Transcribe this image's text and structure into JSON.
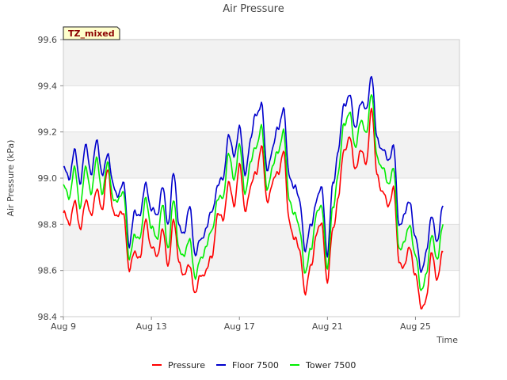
{
  "chart_data": {
    "type": "line",
    "title": "Air Pressure",
    "xlabel": "Time",
    "ylabel": "Air Pressure (kPa)",
    "tag": "TZ_mixed",
    "x_range_days": [
      9,
      27
    ],
    "x_ticks": [
      {
        "day": 9,
        "label": "Aug 9"
      },
      {
        "day": 13,
        "label": "Aug 13"
      },
      {
        "day": 17,
        "label": "Aug 17"
      },
      {
        "day": 21,
        "label": "Aug 21"
      },
      {
        "day": 25,
        "label": "Aug 25"
      }
    ],
    "ylim": [
      98.4,
      99.6
    ],
    "y_ticks": [
      98.4,
      98.6,
      98.8,
      99.0,
      99.2,
      99.4,
      99.6
    ],
    "grid": true,
    "alternating_bands": true,
    "legend_position": "bottom",
    "colors": {
      "pressure": "#ff0000",
      "floor": "#0000cc",
      "tower": "#00ee00",
      "band": "#f2f2f2",
      "tag_bg": "#ffffcc"
    },
    "series": [
      {
        "name": "Pressure",
        "color": "#ff0000",
        "x": [
          9.0,
          9.25,
          9.5,
          9.75,
          10.0,
          10.25,
          10.5,
          10.75,
          11.0,
          11.25,
          11.5,
          11.75,
          12.0,
          12.25,
          12.5,
          12.75,
          13.0,
          13.25,
          13.5,
          13.75,
          14.0,
          14.25,
          14.5,
          14.75,
          15.0,
          15.25,
          15.5,
          15.75,
          16.0,
          16.25,
          16.5,
          16.75,
          17.0,
          17.25,
          17.5,
          17.75,
          18.0,
          18.25,
          18.5,
          18.75,
          19.0,
          19.25,
          19.5,
          19.75,
          20.0,
          20.25,
          20.5,
          20.75,
          21.0,
          21.25,
          21.5,
          21.75,
          22.0,
          22.25,
          22.5,
          22.75,
          23.0,
          23.25,
          23.5,
          23.75,
          24.0,
          24.25,
          24.5,
          24.75,
          25.0,
          25.25,
          25.5,
          25.75,
          26.0,
          26.25
        ],
        "values": [
          98.85,
          98.8,
          98.9,
          98.78,
          98.9,
          98.84,
          98.95,
          98.86,
          99.04,
          98.86,
          98.84,
          98.84,
          98.6,
          98.68,
          98.66,
          98.82,
          98.7,
          98.66,
          98.78,
          98.62,
          98.82,
          98.64,
          98.58,
          98.62,
          98.5,
          98.58,
          98.6,
          98.66,
          98.84,
          98.82,
          98.98,
          98.88,
          99.06,
          98.86,
          98.96,
          99.02,
          99.14,
          98.9,
          98.98,
          99.02,
          99.12,
          98.82,
          98.74,
          98.68,
          98.5,
          98.62,
          98.76,
          98.8,
          98.55,
          98.78,
          98.92,
          99.12,
          99.18,
          99.04,
          99.12,
          99.06,
          99.3,
          99.02,
          98.94,
          98.88,
          98.96,
          98.64,
          98.62,
          98.7,
          98.58,
          98.44,
          98.48,
          98.68,
          98.56,
          98.68
        ]
      },
      {
        "name": "Floor 7500",
        "color": "#0000cc",
        "x": [
          9.0,
          9.25,
          9.5,
          9.75,
          10.0,
          10.25,
          10.5,
          10.75,
          11.0,
          11.25,
          11.5,
          11.75,
          12.0,
          12.25,
          12.5,
          12.75,
          13.0,
          13.25,
          13.5,
          13.75,
          14.0,
          14.25,
          14.5,
          14.75,
          15.0,
          15.25,
          15.5,
          15.75,
          16.0,
          16.25,
          16.5,
          16.75,
          17.0,
          17.25,
          17.5,
          17.75,
          18.0,
          18.25,
          18.5,
          18.75,
          19.0,
          19.25,
          19.5,
          19.75,
          20.0,
          20.25,
          20.5,
          20.75,
          21.0,
          21.25,
          21.5,
          21.75,
          22.0,
          22.25,
          22.5,
          22.75,
          23.0,
          23.25,
          23.5,
          23.75,
          24.0,
          24.25,
          24.5,
          24.75,
          25.0,
          25.25,
          25.5,
          25.75,
          26.0,
          26.25
        ],
        "values": [
          99.04,
          99.0,
          99.12,
          98.98,
          99.14,
          99.02,
          99.16,
          99.02,
          99.1,
          98.98,
          98.92,
          98.98,
          98.7,
          98.86,
          98.84,
          98.98,
          98.86,
          98.84,
          98.96,
          98.8,
          99.02,
          98.8,
          98.76,
          98.88,
          98.66,
          98.74,
          98.78,
          98.86,
          98.96,
          99.0,
          99.18,
          99.1,
          99.22,
          99.02,
          99.16,
          99.28,
          99.32,
          99.04,
          99.12,
          99.22,
          99.3,
          99.02,
          98.96,
          98.9,
          98.68,
          98.8,
          98.9,
          98.96,
          98.66,
          98.98,
          99.12,
          99.32,
          99.36,
          99.22,
          99.32,
          99.3,
          99.44,
          99.18,
          99.12,
          99.08,
          99.14,
          98.8,
          98.84,
          98.9,
          98.74,
          98.6,
          98.68,
          98.84,
          98.72,
          98.88
        ]
      },
      {
        "name": "Tower 7500",
        "color": "#00ee00",
        "x": [
          9.0,
          9.25,
          9.5,
          9.75,
          10.0,
          10.25,
          10.5,
          10.75,
          11.0,
          11.25,
          11.5,
          11.75,
          12.0,
          12.25,
          12.5,
          12.75,
          13.0,
          13.25,
          13.5,
          13.75,
          14.0,
          14.25,
          14.5,
          14.75,
          15.0,
          15.25,
          15.5,
          15.75,
          16.0,
          16.25,
          16.5,
          16.75,
          17.0,
          17.25,
          17.5,
          17.75,
          18.0,
          18.25,
          18.5,
          18.75,
          19.0,
          19.25,
          19.5,
          19.75,
          20.0,
          20.25,
          20.5,
          20.75,
          21.0,
          21.25,
          21.5,
          21.75,
          22.0,
          22.25,
          22.5,
          22.75,
          23.0,
          23.25,
          23.5,
          23.75,
          24.0,
          24.25,
          24.5,
          24.75,
          25.0,
          25.25,
          25.5,
          25.75,
          26.0,
          26.25
        ],
        "values": [
          98.96,
          98.92,
          99.04,
          98.88,
          99.04,
          98.94,
          99.08,
          98.94,
          99.06,
          98.92,
          98.9,
          98.94,
          98.64,
          98.76,
          98.74,
          98.92,
          98.78,
          98.74,
          98.88,
          98.7,
          98.9,
          98.7,
          98.66,
          98.74,
          98.56,
          98.66,
          98.7,
          98.78,
          98.9,
          98.92,
          99.1,
          99.0,
          99.14,
          98.94,
          99.06,
          99.14,
          99.22,
          98.96,
          99.04,
          99.12,
          99.2,
          98.92,
          98.84,
          98.78,
          98.58,
          98.7,
          98.84,
          98.88,
          98.6,
          98.88,
          99.02,
          99.24,
          99.28,
          99.14,
          99.24,
          99.2,
          99.36,
          99.1,
          99.04,
          98.98,
          99.04,
          98.7,
          98.72,
          98.8,
          98.66,
          98.52,
          98.58,
          98.76,
          98.64,
          98.8
        ]
      }
    ]
  }
}
